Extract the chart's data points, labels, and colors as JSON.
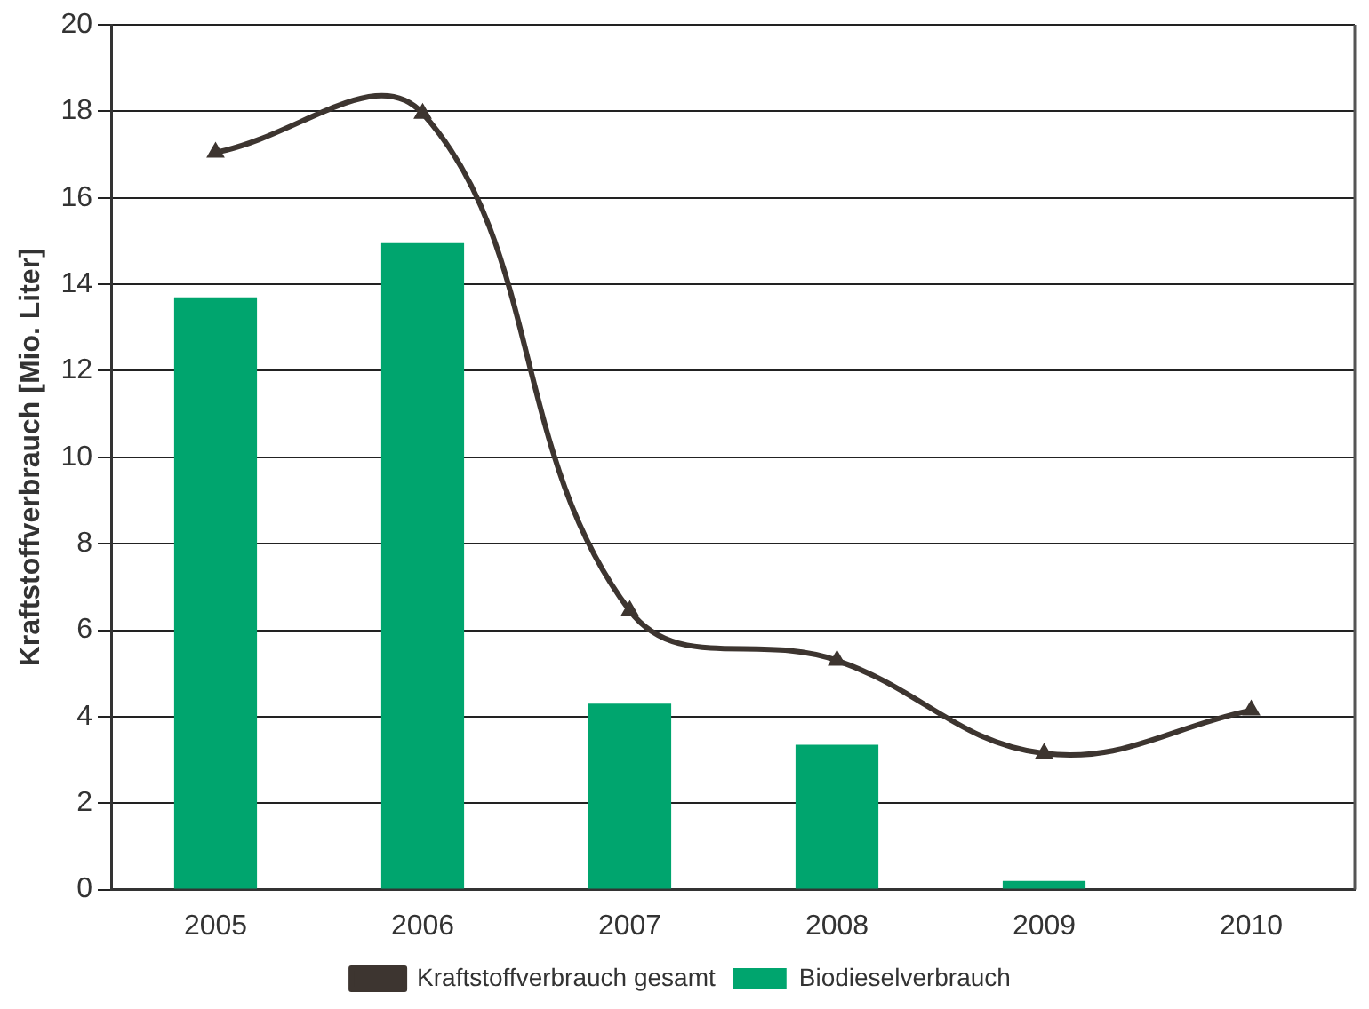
{
  "chart_data": {
    "type": "bar",
    "ylabel": "Kraftstoffverbrauch [Mio. Liter]",
    "categories": [
      "2005",
      "2006",
      "2007",
      "2008",
      "2009",
      "2010"
    ],
    "series": [
      {
        "name": "Biodieselverbrauch",
        "color": "#00a56e",
        "values": [
          13.7,
          14.95,
          4.3,
          3.35,
          0.2,
          null
        ]
      },
      {
        "name": "Kraftstoffverbrauch gesamt",
        "type": "line",
        "color": "#3d3530",
        "values": [
          17.05,
          17.95,
          6.45,
          5.3,
          3.15,
          4.15
        ]
      }
    ],
    "ylim": [
      0,
      20
    ],
    "yticks": [
      0,
      2,
      4,
      6,
      8,
      10,
      12,
      14,
      16,
      18,
      20
    ],
    "grid": "y",
    "legend": "bottom",
    "marker": "triangle",
    "line_style": "solid"
  }
}
